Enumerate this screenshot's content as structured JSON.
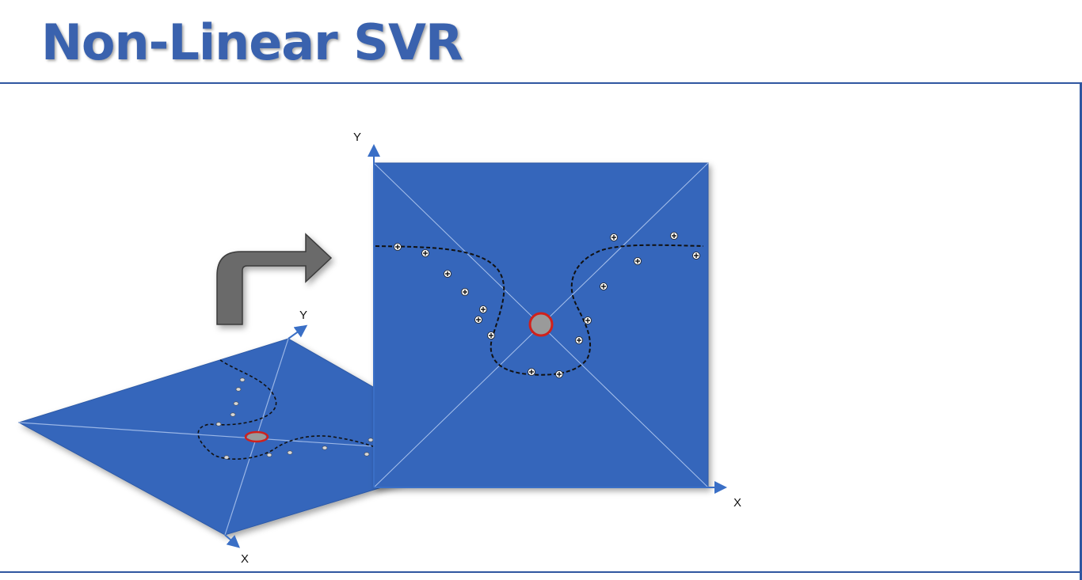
{
  "title": "Non-Linear SVR",
  "axes": {
    "flat_x": "X",
    "flat_y": "Y",
    "front_x": "X",
    "front_y": "Y"
  },
  "colors": {
    "title": "#3a62ae",
    "plane": "#3466bb",
    "rule": "#2f56a0",
    "arrow_fill": "#6a6a6a",
    "highlight_ring": "#d0211c",
    "highlight_center": "#9a9a9a"
  },
  "icons": {
    "transform_arrow": "curved-arrow-right-icon",
    "data_point": "plus-point-icon"
  }
}
